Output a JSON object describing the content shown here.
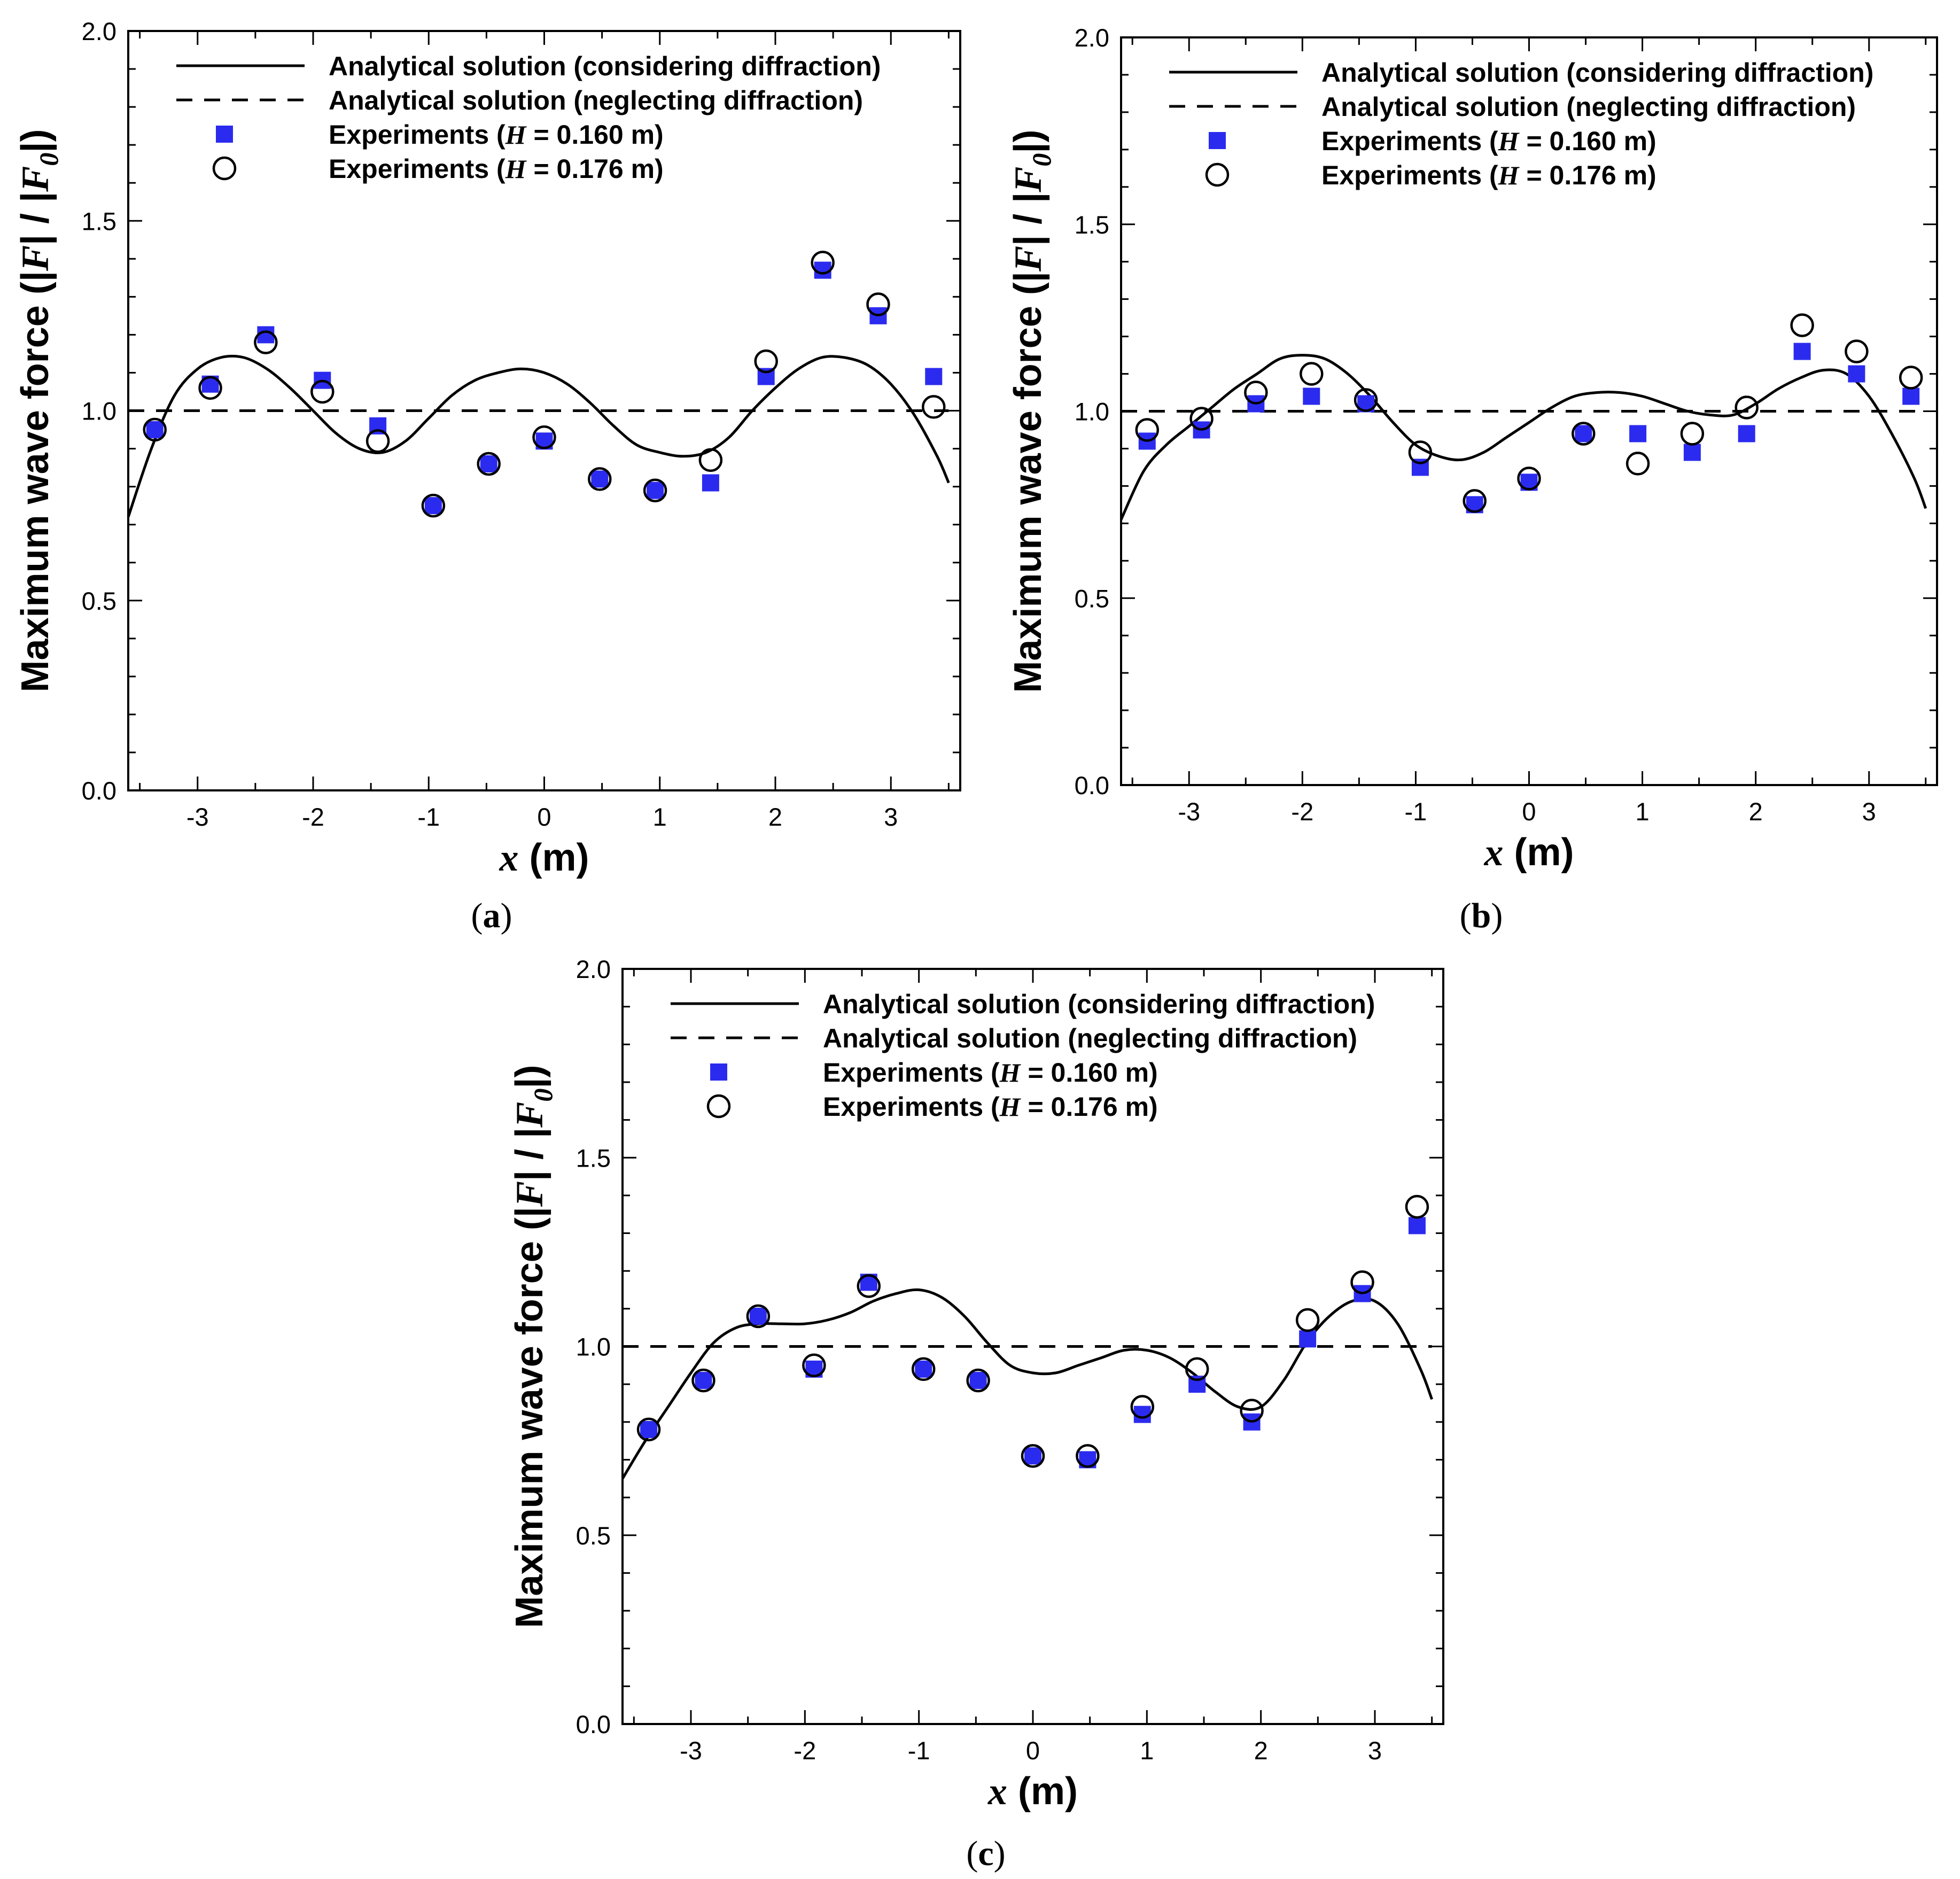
{
  "chart_data": [
    {
      "panel": "a",
      "caption": {
        "open": "(",
        "letter": "a",
        "close": ")"
      },
      "type": "scatter",
      "xlabel": {
        "var": "x",
        "unit": " (m)"
      },
      "ylabel": {
        "prefix": "Maximum wave force (|",
        "F": "F",
        "mid": "| / |",
        "F0": "F",
        "sub": "0",
        "suffix": "|)"
      },
      "xlim": [
        -3.6,
        3.6
      ],
      "ylim": [
        0.0,
        2.0
      ],
      "xticks": [
        -3,
        -2,
        -1,
        0,
        1,
        2,
        3
      ],
      "yticks": [
        0.0,
        0.5,
        1.0,
        1.5,
        2.0
      ],
      "ytick_labels": [
        "0.0",
        "0.5",
        "1.0",
        "1.5",
        "2.0"
      ],
      "legend": {
        "position": "top-left",
        "entries": [
          {
            "style": "solid-line",
            "label": "Analytical solution (considering diffraction)"
          },
          {
            "style": "dashed-line",
            "label": "Analytical solution (neglecting diffraction)"
          },
          {
            "style": "blue-square",
            "prefix": "Experiments (",
            "var": "H",
            "suffix": " = 0.160 m)"
          },
          {
            "style": "open-circle",
            "prefix": "Experiments (",
            "var": "H",
            "suffix": " = 0.176 m)"
          }
        ]
      },
      "series": [
        {
          "name": "Analytical solution (considering diffraction)",
          "type": "line",
          "style": "solid",
          "x": [
            -3.6,
            -3.4,
            -3.2,
            -3.0,
            -2.8,
            -2.6,
            -2.4,
            -2.2,
            -2.0,
            -1.8,
            -1.6,
            -1.4,
            -1.2,
            -1.0,
            -0.8,
            -0.6,
            -0.4,
            -0.2,
            0.0,
            0.2,
            0.4,
            0.6,
            0.8,
            1.0,
            1.2,
            1.4,
            1.6,
            1.8,
            2.0,
            2.2,
            2.4,
            2.6,
            2.8,
            3.0,
            3.2,
            3.4,
            3.5
          ],
          "y": [
            0.72,
            0.9,
            1.04,
            1.11,
            1.14,
            1.14,
            1.11,
            1.06,
            1.0,
            0.94,
            0.9,
            0.89,
            0.92,
            0.98,
            1.04,
            1.08,
            1.1,
            1.11,
            1.1,
            1.07,
            1.02,
            0.96,
            0.91,
            0.89,
            0.88,
            0.89,
            0.93,
            1.0,
            1.06,
            1.11,
            1.14,
            1.14,
            1.12,
            1.07,
            0.99,
            0.88,
            0.81
          ]
        },
        {
          "name": "Analytical solution (neglecting diffraction)",
          "type": "line",
          "style": "dashed",
          "x": [
            -3.6,
            3.5
          ],
          "y": [
            1.0,
            1.0
          ]
        },
        {
          "name": "Experiments (H = 0.160 m)",
          "type": "scatter",
          "marker": "square",
          "color": "#2b2bef",
          "x": [
            -3.37,
            -2.89,
            -2.41,
            -1.92,
            -1.44,
            -0.96,
            -0.48,
            0.0,
            0.48,
            0.96,
            1.44,
            1.92,
            2.41,
            2.89,
            3.37
          ],
          "y": [
            0.95,
            1.07,
            1.2,
            1.08,
            0.96,
            0.75,
            0.86,
            0.92,
            0.82,
            0.79,
            0.81,
            1.09,
            1.37,
            1.25,
            1.09
          ]
        },
        {
          "name": "Experiments (H = 0.176 m)",
          "type": "scatter",
          "marker": "circle",
          "x": [
            -3.37,
            -2.89,
            -2.41,
            -1.92,
            -1.44,
            -0.96,
            -0.48,
            0.0,
            0.48,
            0.96,
            1.44,
            1.92,
            2.41,
            2.89,
            3.37
          ],
          "y": [
            0.95,
            1.06,
            1.18,
            1.05,
            0.92,
            0.75,
            0.86,
            0.93,
            0.82,
            0.79,
            0.87,
            1.13,
            1.39,
            1.28,
            1.01
          ]
        }
      ]
    },
    {
      "panel": "b",
      "caption": {
        "open": "(",
        "letter": "b",
        "close": ")"
      },
      "type": "scatter",
      "xlabel": {
        "var": "x",
        "unit": " (m)"
      },
      "ylabel": {
        "prefix": "Maximum wave force (|",
        "F": "F",
        "mid": "| / |",
        "F0": "F",
        "sub": "0",
        "suffix": "|)"
      },
      "xlim": [
        -3.6,
        3.6
      ],
      "ylim": [
        0.0,
        2.0
      ],
      "xticks": [
        -3,
        -2,
        -1,
        0,
        1,
        2,
        3
      ],
      "yticks": [
        0.0,
        0.5,
        1.0,
        1.5,
        2.0
      ],
      "ytick_labels": [
        "0.0",
        "0.5",
        "1.0",
        "1.5",
        "2.0"
      ],
      "legend": {
        "position": "top-left",
        "entries": [
          {
            "style": "solid-line",
            "label": "Analytical solution (considering diffraction)"
          },
          {
            "style": "dashed-line",
            "label": "Analytical solution (neglecting diffraction)"
          },
          {
            "style": "blue-square",
            "prefix": "Experiments (",
            "var": "H",
            "suffix": " = 0.160 m)"
          },
          {
            "style": "open-circle",
            "prefix": "Experiments (",
            "var": "H",
            "suffix": " = 0.176 m)"
          }
        ]
      },
      "series": [
        {
          "name": "Analytical solution (considering diffraction)",
          "type": "line",
          "style": "solid",
          "x": [
            -3.6,
            -3.4,
            -3.2,
            -3.0,
            -2.8,
            -2.6,
            -2.4,
            -2.2,
            -2.0,
            -1.8,
            -1.6,
            -1.4,
            -1.2,
            -1.0,
            -0.8,
            -0.6,
            -0.4,
            -0.2,
            0.0,
            0.2,
            0.4,
            0.6,
            0.8,
            1.0,
            1.2,
            1.4,
            1.6,
            1.8,
            2.0,
            2.2,
            2.4,
            2.6,
            2.8,
            3.0,
            3.2,
            3.4,
            3.5
          ],
          "y": [
            0.71,
            0.84,
            0.91,
            0.96,
            1.01,
            1.06,
            1.1,
            1.14,
            1.15,
            1.14,
            1.1,
            1.04,
            0.97,
            0.91,
            0.88,
            0.87,
            0.89,
            0.93,
            0.97,
            1.01,
            1.04,
            1.05,
            1.05,
            1.04,
            1.02,
            1.0,
            0.99,
            0.99,
            1.02,
            1.06,
            1.09,
            1.11,
            1.1,
            1.04,
            0.94,
            0.82,
            0.74
          ]
        },
        {
          "name": "Analytical solution (neglecting diffraction)",
          "type": "line",
          "style": "dashed",
          "x": [
            -3.6,
            3.5
          ],
          "y": [
            1.0,
            1.0
          ]
        },
        {
          "name": "Experiments (H = 0.160 m)",
          "type": "scatter",
          "marker": "square",
          "color": "#2b2bef",
          "x": [
            -3.37,
            -2.89,
            -2.41,
            -1.92,
            -1.44,
            -0.96,
            -0.48,
            0.0,
            0.48,
            0.96,
            1.44,
            1.92,
            2.41,
            2.89,
            3.37
          ],
          "y": [
            0.92,
            0.95,
            1.02,
            1.04,
            1.02,
            0.85,
            0.75,
            0.81,
            0.94,
            0.94,
            0.89,
            0.94,
            1.16,
            1.1,
            1.04
          ]
        },
        {
          "name": "Experiments (H = 0.176 m)",
          "type": "scatter",
          "marker": "circle",
          "x": [
            -3.37,
            -2.89,
            -2.41,
            -1.92,
            -1.44,
            -0.96,
            -0.48,
            0.0,
            0.48,
            0.96,
            1.44,
            1.92,
            2.41,
            2.89,
            3.37
          ],
          "y": [
            0.95,
            0.98,
            1.05,
            1.1,
            1.03,
            0.89,
            0.76,
            0.82,
            0.94,
            0.86,
            0.94,
            1.01,
            1.23,
            1.16,
            1.09
          ]
        }
      ]
    },
    {
      "panel": "c",
      "caption": {
        "open": "(",
        "letter": "c",
        "close": ")"
      },
      "type": "scatter",
      "xlabel": {
        "var": "x",
        "unit": " (m)"
      },
      "ylabel": {
        "prefix": "Maximum wave force (|",
        "F": "F",
        "mid": "| / |",
        "F0": "F",
        "sub": "0",
        "suffix": "|)"
      },
      "xlim": [
        -3.6,
        3.6
      ],
      "ylim": [
        0.0,
        2.0
      ],
      "xticks": [
        -3,
        -2,
        -1,
        0,
        1,
        2,
        3
      ],
      "yticks": [
        0.0,
        0.5,
        1.0,
        1.5,
        2.0
      ],
      "ytick_labels": [
        "0.0",
        "0.5",
        "1.0",
        "1.5",
        "2.0"
      ],
      "legend": {
        "position": "top-left",
        "entries": [
          {
            "style": "solid-line",
            "label": "Analytical solution (considering diffraction)"
          },
          {
            "style": "dashed-line",
            "label": "Analytical solution (neglecting diffraction)"
          },
          {
            "style": "blue-square",
            "prefix": "Experiments (",
            "var": "H",
            "suffix": " = 0.160 m)"
          },
          {
            "style": "open-circle",
            "prefix": "Experiments (",
            "var": "H",
            "suffix": " = 0.176 m)"
          }
        ]
      },
      "series": [
        {
          "name": "Analytical solution (considering diffraction)",
          "type": "line",
          "style": "solid",
          "x": [
            -3.6,
            -3.4,
            -3.2,
            -3.0,
            -2.8,
            -2.6,
            -2.4,
            -2.2,
            -2.0,
            -1.8,
            -1.6,
            -1.4,
            -1.2,
            -1.0,
            -0.8,
            -0.6,
            -0.4,
            -0.2,
            0.0,
            0.2,
            0.4,
            0.6,
            0.8,
            1.0,
            1.2,
            1.4,
            1.6,
            1.8,
            2.0,
            2.2,
            2.4,
            2.6,
            2.8,
            3.0,
            3.2,
            3.4,
            3.5
          ],
          "y": [
            0.65,
            0.75,
            0.84,
            0.93,
            1.01,
            1.05,
            1.06,
            1.06,
            1.06,
            1.07,
            1.09,
            1.12,
            1.14,
            1.15,
            1.13,
            1.08,
            1.01,
            0.95,
            0.93,
            0.93,
            0.95,
            0.97,
            0.99,
            0.99,
            0.97,
            0.93,
            0.88,
            0.84,
            0.84,
            0.91,
            1.01,
            1.08,
            1.12,
            1.12,
            1.06,
            0.94,
            0.86
          ]
        },
        {
          "name": "Analytical solution (neglecting diffraction)",
          "type": "line",
          "style": "dashed",
          "x": [
            -3.6,
            3.5
          ],
          "y": [
            1.0,
            1.0
          ]
        },
        {
          "name": "Experiments (H = 0.160 m)",
          "type": "scatter",
          "marker": "square",
          "color": "#2b2bef",
          "x": [
            -3.37,
            -2.89,
            -2.41,
            -1.92,
            -1.44,
            -0.96,
            -0.48,
            0.0,
            0.48,
            0.96,
            1.44,
            1.92,
            2.41,
            2.89,
            3.37
          ],
          "y": [
            0.78,
            0.91,
            1.08,
            0.94,
            1.17,
            0.94,
            0.91,
            0.71,
            0.7,
            0.82,
            0.9,
            0.8,
            1.02,
            1.14,
            1.32
          ]
        },
        {
          "name": "Experiments (H = 0.176 m)",
          "type": "scatter",
          "marker": "circle",
          "x": [
            -3.37,
            -2.89,
            -2.41,
            -1.92,
            -1.44,
            -0.96,
            -0.48,
            0.0,
            0.48,
            0.96,
            1.44,
            1.92,
            2.41,
            2.89,
            3.37
          ],
          "y": [
            0.78,
            0.91,
            1.08,
            0.95,
            1.16,
            0.94,
            0.91,
            0.71,
            0.71,
            0.84,
            0.94,
            0.83,
            1.07,
            1.17,
            1.37
          ]
        }
      ]
    }
  ]
}
